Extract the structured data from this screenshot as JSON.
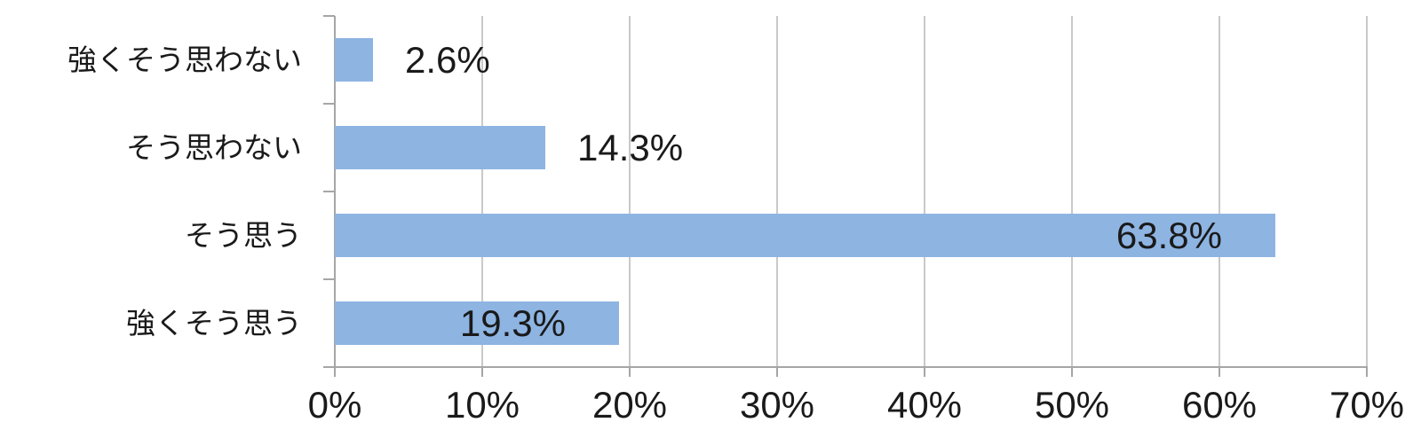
{
  "chart_data": {
    "type": "bar",
    "orientation": "horizontal",
    "title": "",
    "xlabel": "",
    "ylabel": "",
    "categories": [
      "強くそう思わない",
      "そう思わない",
      "そう思う",
      "強くそう思う"
    ],
    "values": [
      2.6,
      14.3,
      63.8,
      19.3
    ],
    "value_labels": [
      "2.6%",
      "14.3%",
      "63.8%",
      "19.3%"
    ],
    "value_label_placement": [
      "outside",
      "outside",
      "inside",
      "inside"
    ],
    "x_ticks": [
      0,
      10,
      20,
      30,
      40,
      50,
      60,
      70
    ],
    "x_tick_labels": [
      "0%",
      "10%",
      "20%",
      "30%",
      "40%",
      "50%",
      "60%",
      "70%"
    ],
    "xlim": [
      0,
      70
    ],
    "grid": true,
    "legend": false,
    "colors": {
      "bar_fill": "#8EB4E2",
      "gridline": "#C9C9C9",
      "axis_line": "#A6A6A6",
      "text": "#1A1A1A"
    }
  }
}
